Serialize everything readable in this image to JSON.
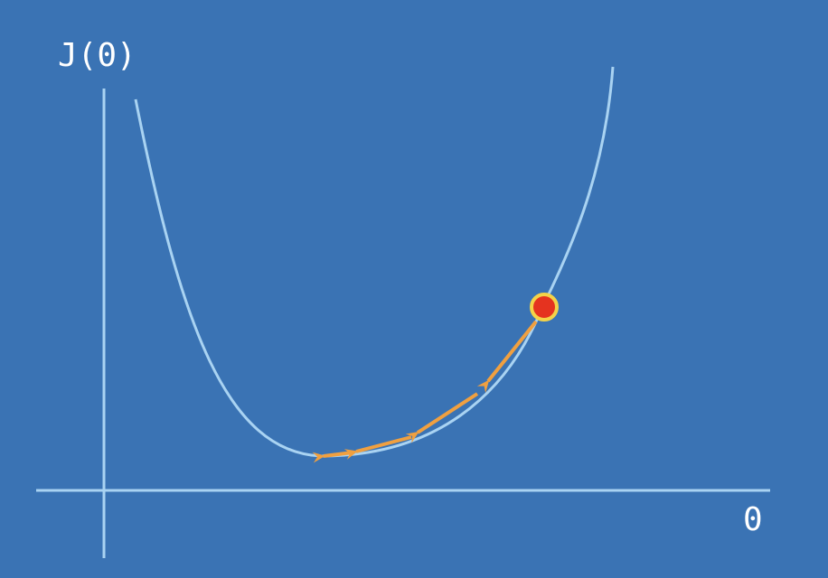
{
  "labels": {
    "y_axis": "J(0)",
    "x_axis": "0"
  },
  "colors": {
    "background": "#3a73b4",
    "axes": "#a9d3f2",
    "curve": "#a9d3f2",
    "steps": "#f0a040",
    "point_fill": "#e5331f",
    "point_stroke": "#f4d348"
  }
}
